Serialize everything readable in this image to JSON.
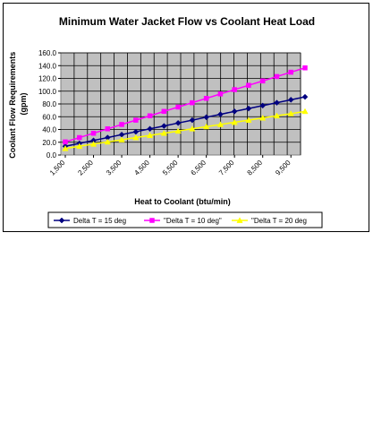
{
  "chart_data": {
    "type": "line",
    "title": "Minimum  Water Jacket Flow vs Coolant Heat Load",
    "xlabel": "Heat to Coolant (btu/min)",
    "ylabel": "Coolant Flow Requirements (gpm)",
    "ylabel_lines": [
      "Coolant Flow Requirements",
      "(gpm)"
    ],
    "x": [
      1500,
      2000,
      2500,
      3000,
      3500,
      4000,
      4500,
      5000,
      5500,
      6000,
      6500,
      7000,
      7500,
      8000,
      8500,
      9000,
      9500,
      10000
    ],
    "xlim": [
      1500,
      10000
    ],
    "x_tick_labels": [
      "1,500",
      "2,500",
      "3,500",
      "4,500",
      "5,500",
      "6,500",
      "7,500",
      "8,500",
      "9,500"
    ],
    "x_tick_values": [
      1500,
      2500,
      3500,
      4500,
      5500,
      6500,
      7500,
      8500,
      9500
    ],
    "ylim": [
      0,
      160
    ],
    "y_tick_values": [
      0,
      20,
      40,
      60,
      80,
      100,
      120,
      140,
      160
    ],
    "y_tick_labels": [
      "0.0",
      "20.0",
      "40.0",
      "60.0",
      "80.0",
      "100.0",
      "120.0",
      "140.0",
      "160.0"
    ],
    "grid": true,
    "legend_position": "bottom",
    "series": [
      {
        "name": "Delta T = 15 deg",
        "color": "#000080",
        "marker": "diamond",
        "values": [
          13.7,
          18.2,
          22.8,
          27.3,
          31.9,
          36.4,
          41.0,
          45.5,
          50.1,
          54.6,
          59.2,
          63.7,
          68.3,
          72.8,
          77.4,
          81.9,
          86.5,
          91.0
        ]
      },
      {
        "name": "\"Delta T = 10 deg\"",
        "color": "#ff00ff",
        "marker": "square",
        "values": [
          20.5,
          27.3,
          34.1,
          41.0,
          47.8,
          54.6,
          61.4,
          68.3,
          75.1,
          81.9,
          88.7,
          95.6,
          102.4,
          109.2,
          116.0,
          122.9,
          129.7,
          136.5
        ]
      },
      {
        "name": "\"Delta T = 20 deg",
        "color": "#ffff00",
        "marker": "triangle",
        "values": [
          10.2,
          13.7,
          17.1,
          20.5,
          23.9,
          27.3,
          30.7,
          34.1,
          37.5,
          41.0,
          44.4,
          47.8,
          51.2,
          54.6,
          58.0,
          61.4,
          64.8,
          68.3
        ]
      }
    ]
  }
}
